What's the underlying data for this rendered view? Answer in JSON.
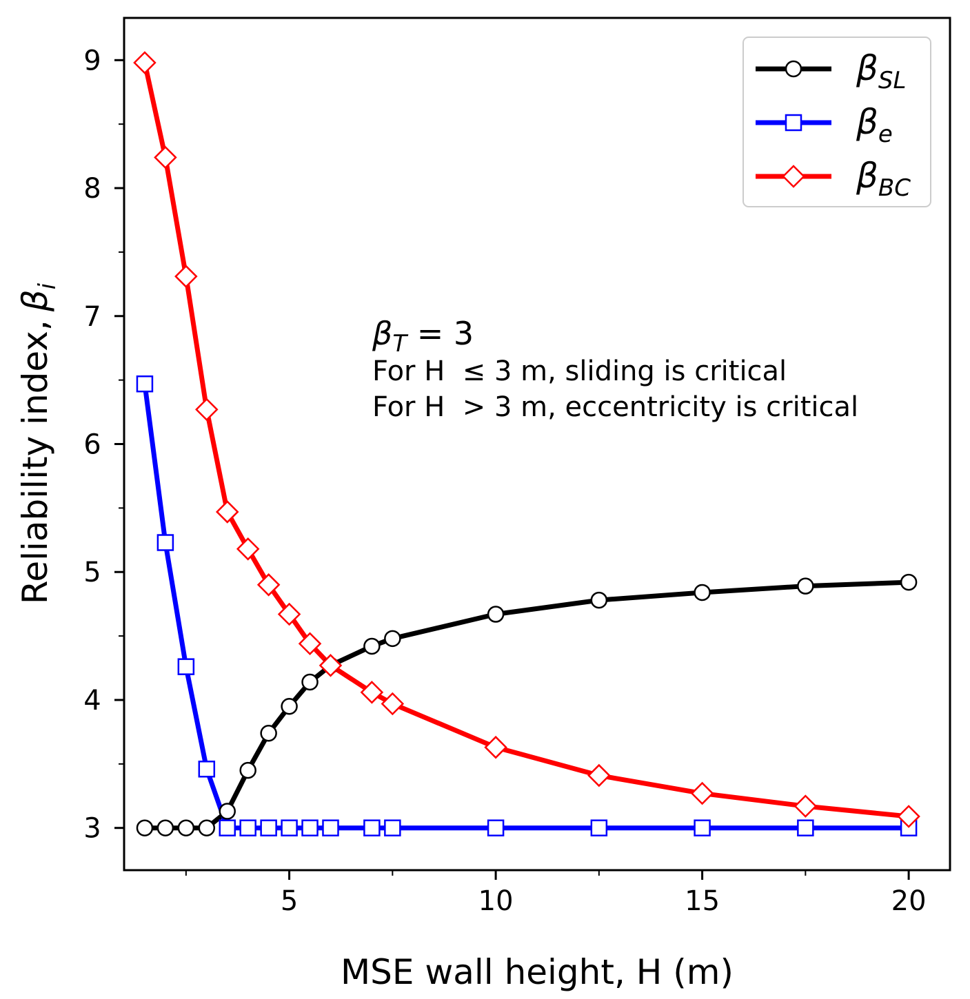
{
  "chart_data": {
    "type": "line",
    "xlabel": "MSE wall height, H (m)",
    "ylabel_text": "Reliability index,",
    "ylabel_symbol": "β",
    "ylabel_sub": "i",
    "xlim": [
      1.0,
      21.0
    ],
    "ylim": [
      2.67,
      9.33
    ],
    "x_major_ticks": [
      5,
      10,
      15,
      20
    ],
    "x_minor_ticks": [
      2.5,
      7.5,
      12.5,
      17.5
    ],
    "y_major_ticks": [
      3,
      4,
      5,
      6,
      7,
      8,
      9
    ],
    "y_minor_ticks": [
      3.5,
      4.5,
      5.5,
      6.5,
      7.5,
      8.5
    ],
    "series": [
      {
        "name": "β_SL",
        "symbol": "β",
        "sub": "SL",
        "color": "#000000",
        "marker": "circle",
        "x": [
          1.5,
          2.0,
          2.5,
          3.0,
          3.5,
          4.0,
          4.5,
          5.0,
          5.5,
          6.0,
          7.0,
          7.5,
          10.0,
          12.5,
          15.0,
          17.5,
          20.0
        ],
        "y": [
          3.0,
          3.0,
          3.0,
          3.0,
          3.13,
          3.45,
          3.74,
          3.95,
          4.14,
          4.27,
          4.42,
          4.48,
          4.67,
          4.78,
          4.84,
          4.89,
          4.92
        ]
      },
      {
        "name": "β_e",
        "symbol": "β",
        "sub": "e",
        "color": "#0000ff",
        "marker": "square",
        "x": [
          1.5,
          2.0,
          2.5,
          3.0,
          3.5,
          4.0,
          4.5,
          5.0,
          5.5,
          6.0,
          7.0,
          7.5,
          10.0,
          12.5,
          15.0,
          17.5,
          20.0
        ],
        "y": [
          6.47,
          5.23,
          4.26,
          3.46,
          3.0,
          3.0,
          3.0,
          3.0,
          3.0,
          3.0,
          3.0,
          3.0,
          3.0,
          3.0,
          3.0,
          3.0,
          3.0
        ]
      },
      {
        "name": "β_BC",
        "symbol": "β",
        "sub": "BC",
        "color": "#ff0000",
        "marker": "diamond",
        "x": [
          1.5,
          2.0,
          2.5,
          3.0,
          3.5,
          4.0,
          4.5,
          5.0,
          5.5,
          6.0,
          7.0,
          7.5,
          10.0,
          12.5,
          15.0,
          17.5,
          20.0
        ],
        "y": [
          8.98,
          8.24,
          7.31,
          6.27,
          5.47,
          5.18,
          4.9,
          4.67,
          4.44,
          4.27,
          4.06,
          3.97,
          3.63,
          3.41,
          3.27,
          3.17,
          3.09
        ]
      }
    ],
    "legend_position": "top-right",
    "annotations": {
      "target_symbol": "β",
      "target_sub": "T",
      "target_value": " = 3",
      "line1": "For H  ≤ 3 m, sliding is critical",
      "line2": "For H  > 3 m, eccentricity is critical"
    }
  }
}
